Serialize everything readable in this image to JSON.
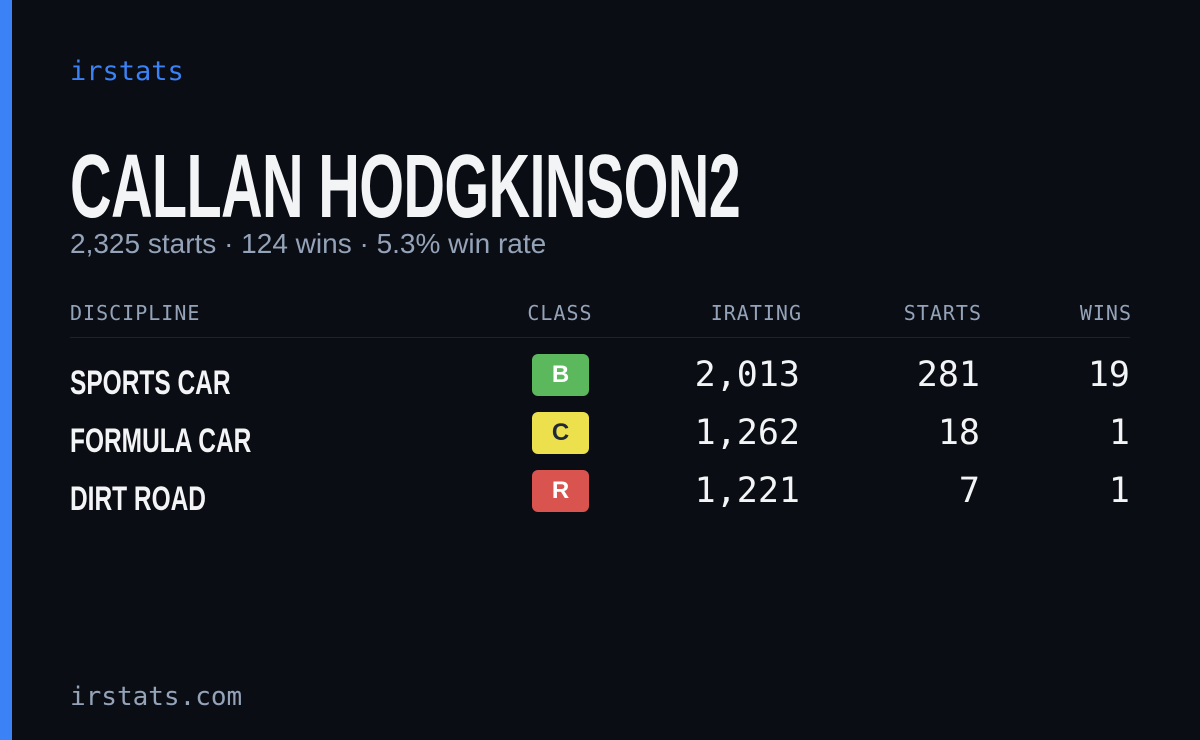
{
  "brand": "irstats",
  "profile": {
    "name": "CALLAN HODGKINSON2",
    "summary": "2,325 starts · 124 wins · 5.3% win rate"
  },
  "table": {
    "headers": [
      "DISCIPLINE",
      "CLASS",
      "IRATING",
      "STARTS",
      "WINS"
    ],
    "rows": [
      [
        "SPORTS CAR",
        "B",
        "2,013",
        "281",
        "19"
      ],
      [
        "FORMULA CAR",
        "C",
        "1,262",
        "18",
        "1"
      ],
      [
        "DIRT ROAD",
        "R",
        "1,221",
        "7",
        "1"
      ]
    ]
  },
  "footer": "irstats.com"
}
